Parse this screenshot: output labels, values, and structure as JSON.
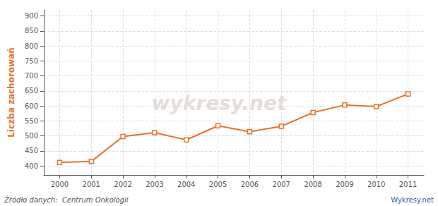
{
  "chart_data": {
    "type": "line",
    "ylabel": "Liczba zachorowań",
    "annotations": [
      "wykresy.net",
      "Źródło danych:  Centrum Onkologii",
      "Wykresy.net"
    ],
    "x": [
      2000,
      2001,
      2002,
      2003,
      2004,
      2005,
      2006,
      2007,
      2008,
      2009,
      2010,
      2011
    ],
    "values": [
      412,
      415,
      498,
      511,
      487,
      534,
      514,
      532,
      578,
      603,
      598,
      640
    ],
    "color": "#e8722a",
    "marker": "square",
    "xlim": [
      1999.5,
      2011.5
    ],
    "xticks": [
      2000,
      2001,
      2002,
      2003,
      2004,
      2005,
      2006,
      2007,
      2008,
      2009,
      2010,
      2011
    ],
    "ylim": [
      370,
      920
    ],
    "yticks": [
      400,
      450,
      500,
      550,
      600,
      650,
      700,
      750,
      800,
      850,
      900
    ],
    "grid": true
  }
}
